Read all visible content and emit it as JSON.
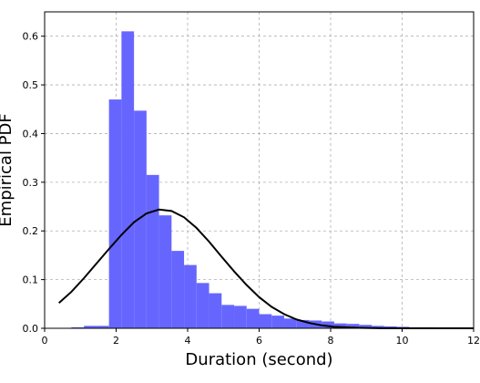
{
  "chart_data": {
    "type": "bar",
    "xlabel": "Duration (second)",
    "ylabel": "Empirical PDF",
    "xlim": [
      0,
      12
    ],
    "ylim": [
      0,
      0.65
    ],
    "grid": true,
    "grid_style": "dashed",
    "bar_color": "#6666ff",
    "line_color": "#000000",
    "xticks": [
      "0",
      "2",
      "4",
      "6",
      "8",
      "10",
      "12"
    ],
    "yticks": [
      "0.0",
      "0.1",
      "0.2",
      "0.3",
      "0.4",
      "0.5",
      "0.6"
    ],
    "bin_width": 0.35,
    "bins": [
      {
        "x": 0.4,
        "value": 0.0
      },
      {
        "x": 0.75,
        "value": 0.002
      },
      {
        "x": 1.1,
        "value": 0.005
      },
      {
        "x": 1.45,
        "value": 0.005
      },
      {
        "x": 1.8,
        "value": 0.47
      },
      {
        "x": 2.15,
        "value": 0.61
      },
      {
        "x": 2.5,
        "value": 0.447
      },
      {
        "x": 2.85,
        "value": 0.315
      },
      {
        "x": 3.2,
        "value": 0.232
      },
      {
        "x": 3.55,
        "value": 0.159
      },
      {
        "x": 3.9,
        "value": 0.13
      },
      {
        "x": 4.25,
        "value": 0.093
      },
      {
        "x": 4.6,
        "value": 0.072
      },
      {
        "x": 4.95,
        "value": 0.048
      },
      {
        "x": 5.3,
        "value": 0.046
      },
      {
        "x": 5.65,
        "value": 0.04
      },
      {
        "x": 6.0,
        "value": 0.029
      },
      {
        "x": 6.35,
        "value": 0.026
      },
      {
        "x": 6.7,
        "value": 0.02
      },
      {
        "x": 7.05,
        "value": 0.017
      },
      {
        "x": 7.4,
        "value": 0.016
      },
      {
        "x": 7.75,
        "value": 0.014
      },
      {
        "x": 8.1,
        "value": 0.01
      },
      {
        "x": 8.45,
        "value": 0.009
      },
      {
        "x": 8.8,
        "value": 0.007
      },
      {
        "x": 9.15,
        "value": 0.005
      },
      {
        "x": 9.5,
        "value": 0.004
      },
      {
        "x": 9.85,
        "value": 0.003
      },
      {
        "x": 10.2,
        "value": 0.002
      },
      {
        "x": 10.55,
        "value": 0.002
      },
      {
        "x": 10.9,
        "value": 0.001
      },
      {
        "x": 11.25,
        "value": 0.001
      },
      {
        "x": 11.6,
        "value": 0.001
      }
    ],
    "fit_curve": {
      "x": [
        0.4,
        0.75,
        1.1,
        1.45,
        1.8,
        2.15,
        2.5,
        2.85,
        3.2,
        3.55,
        3.9,
        4.25,
        4.6,
        4.95,
        5.3,
        5.65,
        6.0,
        6.35,
        6.7,
        7.05,
        7.4,
        7.75,
        8.1,
        8.45,
        8.8,
        9.5,
        10.5,
        11.5,
        12.0
      ],
      "y": [
        0.052,
        0.075,
        0.103,
        0.133,
        0.163,
        0.192,
        0.218,
        0.236,
        0.244,
        0.241,
        0.228,
        0.206,
        0.178,
        0.147,
        0.117,
        0.089,
        0.064,
        0.044,
        0.029,
        0.018,
        0.011,
        0.006,
        0.003,
        0.002,
        0.001,
        0.0,
        0.0,
        0.0,
        0.0
      ]
    }
  }
}
